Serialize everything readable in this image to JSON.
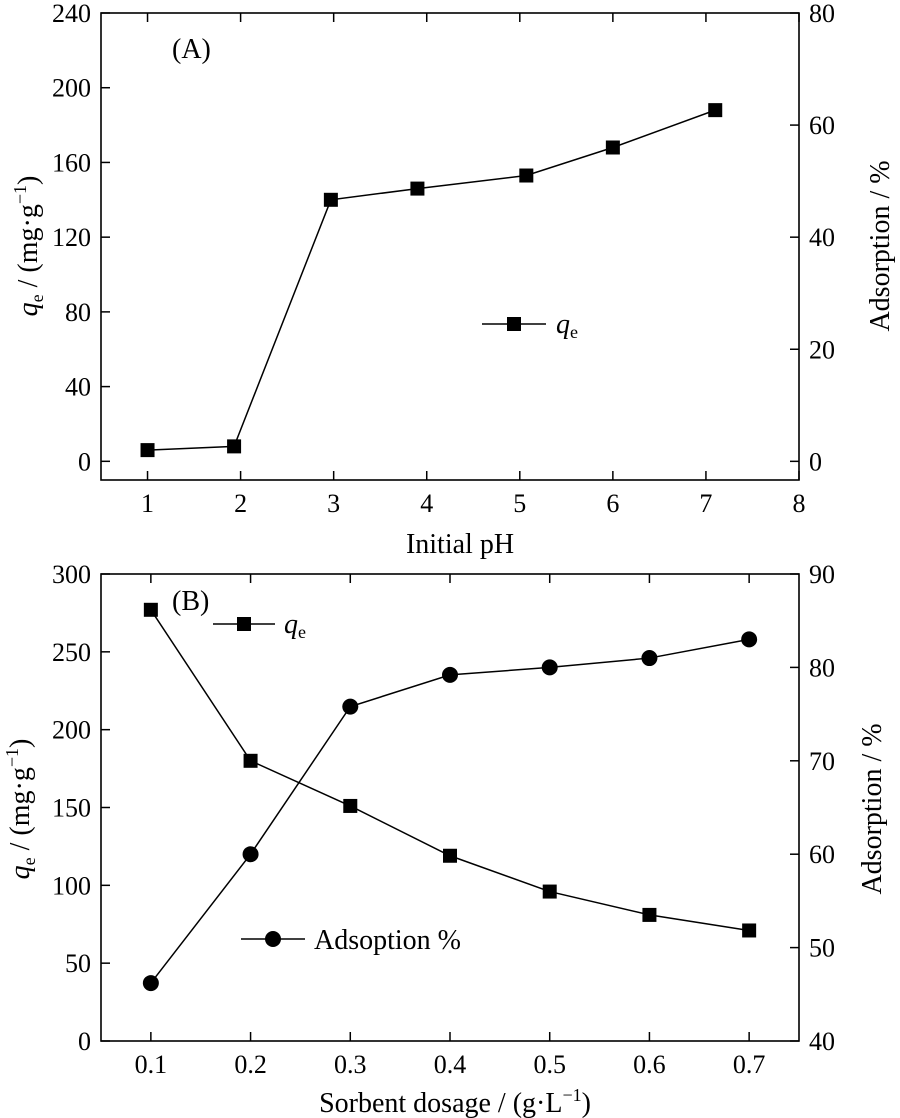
{
  "chart_data": [
    {
      "type": "line",
      "panel_label": "(A)",
      "xlabel": "Initial pH",
      "ylabel_left_symbol": "q",
      "ylabel_left_sub": "e",
      "ylabel_left_unit_a": " / (mg·g",
      "ylabel_left_unit_sup": "−1",
      "ylabel_left_unit_b": ")",
      "ylabel_right": "Adsorption / %",
      "xlim": [
        0.5,
        8
      ],
      "xticks": [
        1,
        2,
        3,
        4,
        5,
        6,
        7,
        8
      ],
      "ylim_left": [
        -10,
        240
      ],
      "yticks_left": [
        0,
        40,
        80,
        120,
        160,
        200,
        240
      ],
      "ylim_right": [
        -3.33,
        80
      ],
      "yticks_right": [
        0,
        20,
        40,
        60,
        80
      ],
      "legend_placement": "center-right",
      "series": [
        {
          "name_symbol": "q",
          "name_sub": "e",
          "marker": "square",
          "axis": "left",
          "x": [
            1.0,
            1.93,
            2.97,
            3.9,
            5.07,
            6.0,
            7.1
          ],
          "y": [
            6,
            8,
            140,
            146,
            153,
            168,
            188
          ]
        }
      ]
    },
    {
      "type": "line",
      "panel_label": "(B)",
      "xlabel_a": "Sorbent dosage / (g·L",
      "xlabel_sup": "−1",
      "xlabel_b": ")",
      "ylabel_left_symbol": "q",
      "ylabel_left_sub": "e",
      "ylabel_left_unit_a": " / (mg·g",
      "ylabel_left_unit_sup": "−1",
      "ylabel_left_unit_b": ")",
      "ylabel_right": "Adsorption / %",
      "xlim": [
        0.05,
        0.75
      ],
      "xticks": [
        "0.1",
        "0.2",
        "0.3",
        "0.4",
        "0.5",
        "0.6",
        "0.7"
      ],
      "ylim_left": [
        0,
        300
      ],
      "yticks_left": [
        0,
        50,
        100,
        150,
        200,
        250,
        300
      ],
      "ylim_right": [
        40,
        90
      ],
      "yticks_right": [
        40,
        50,
        60,
        70,
        80,
        90
      ],
      "legend_placement": "top-left and lower-left",
      "series": [
        {
          "name_symbol": "q",
          "name_sub": "e",
          "marker": "square",
          "axis": "left",
          "x": [
            0.1,
            0.2,
            0.3,
            0.4,
            0.5,
            0.6,
            0.7
          ],
          "y": [
            277,
            180,
            151,
            119,
            96,
            81,
            71
          ]
        },
        {
          "name": "Adsoption %",
          "marker": "circle",
          "axis": "right",
          "x": [
            0.1,
            0.2,
            0.3,
            0.4,
            0.5,
            0.6,
            0.7
          ],
          "y": [
            46.2,
            60.0,
            75.8,
            79.2,
            80.0,
            81.0,
            83.0
          ]
        }
      ]
    }
  ]
}
